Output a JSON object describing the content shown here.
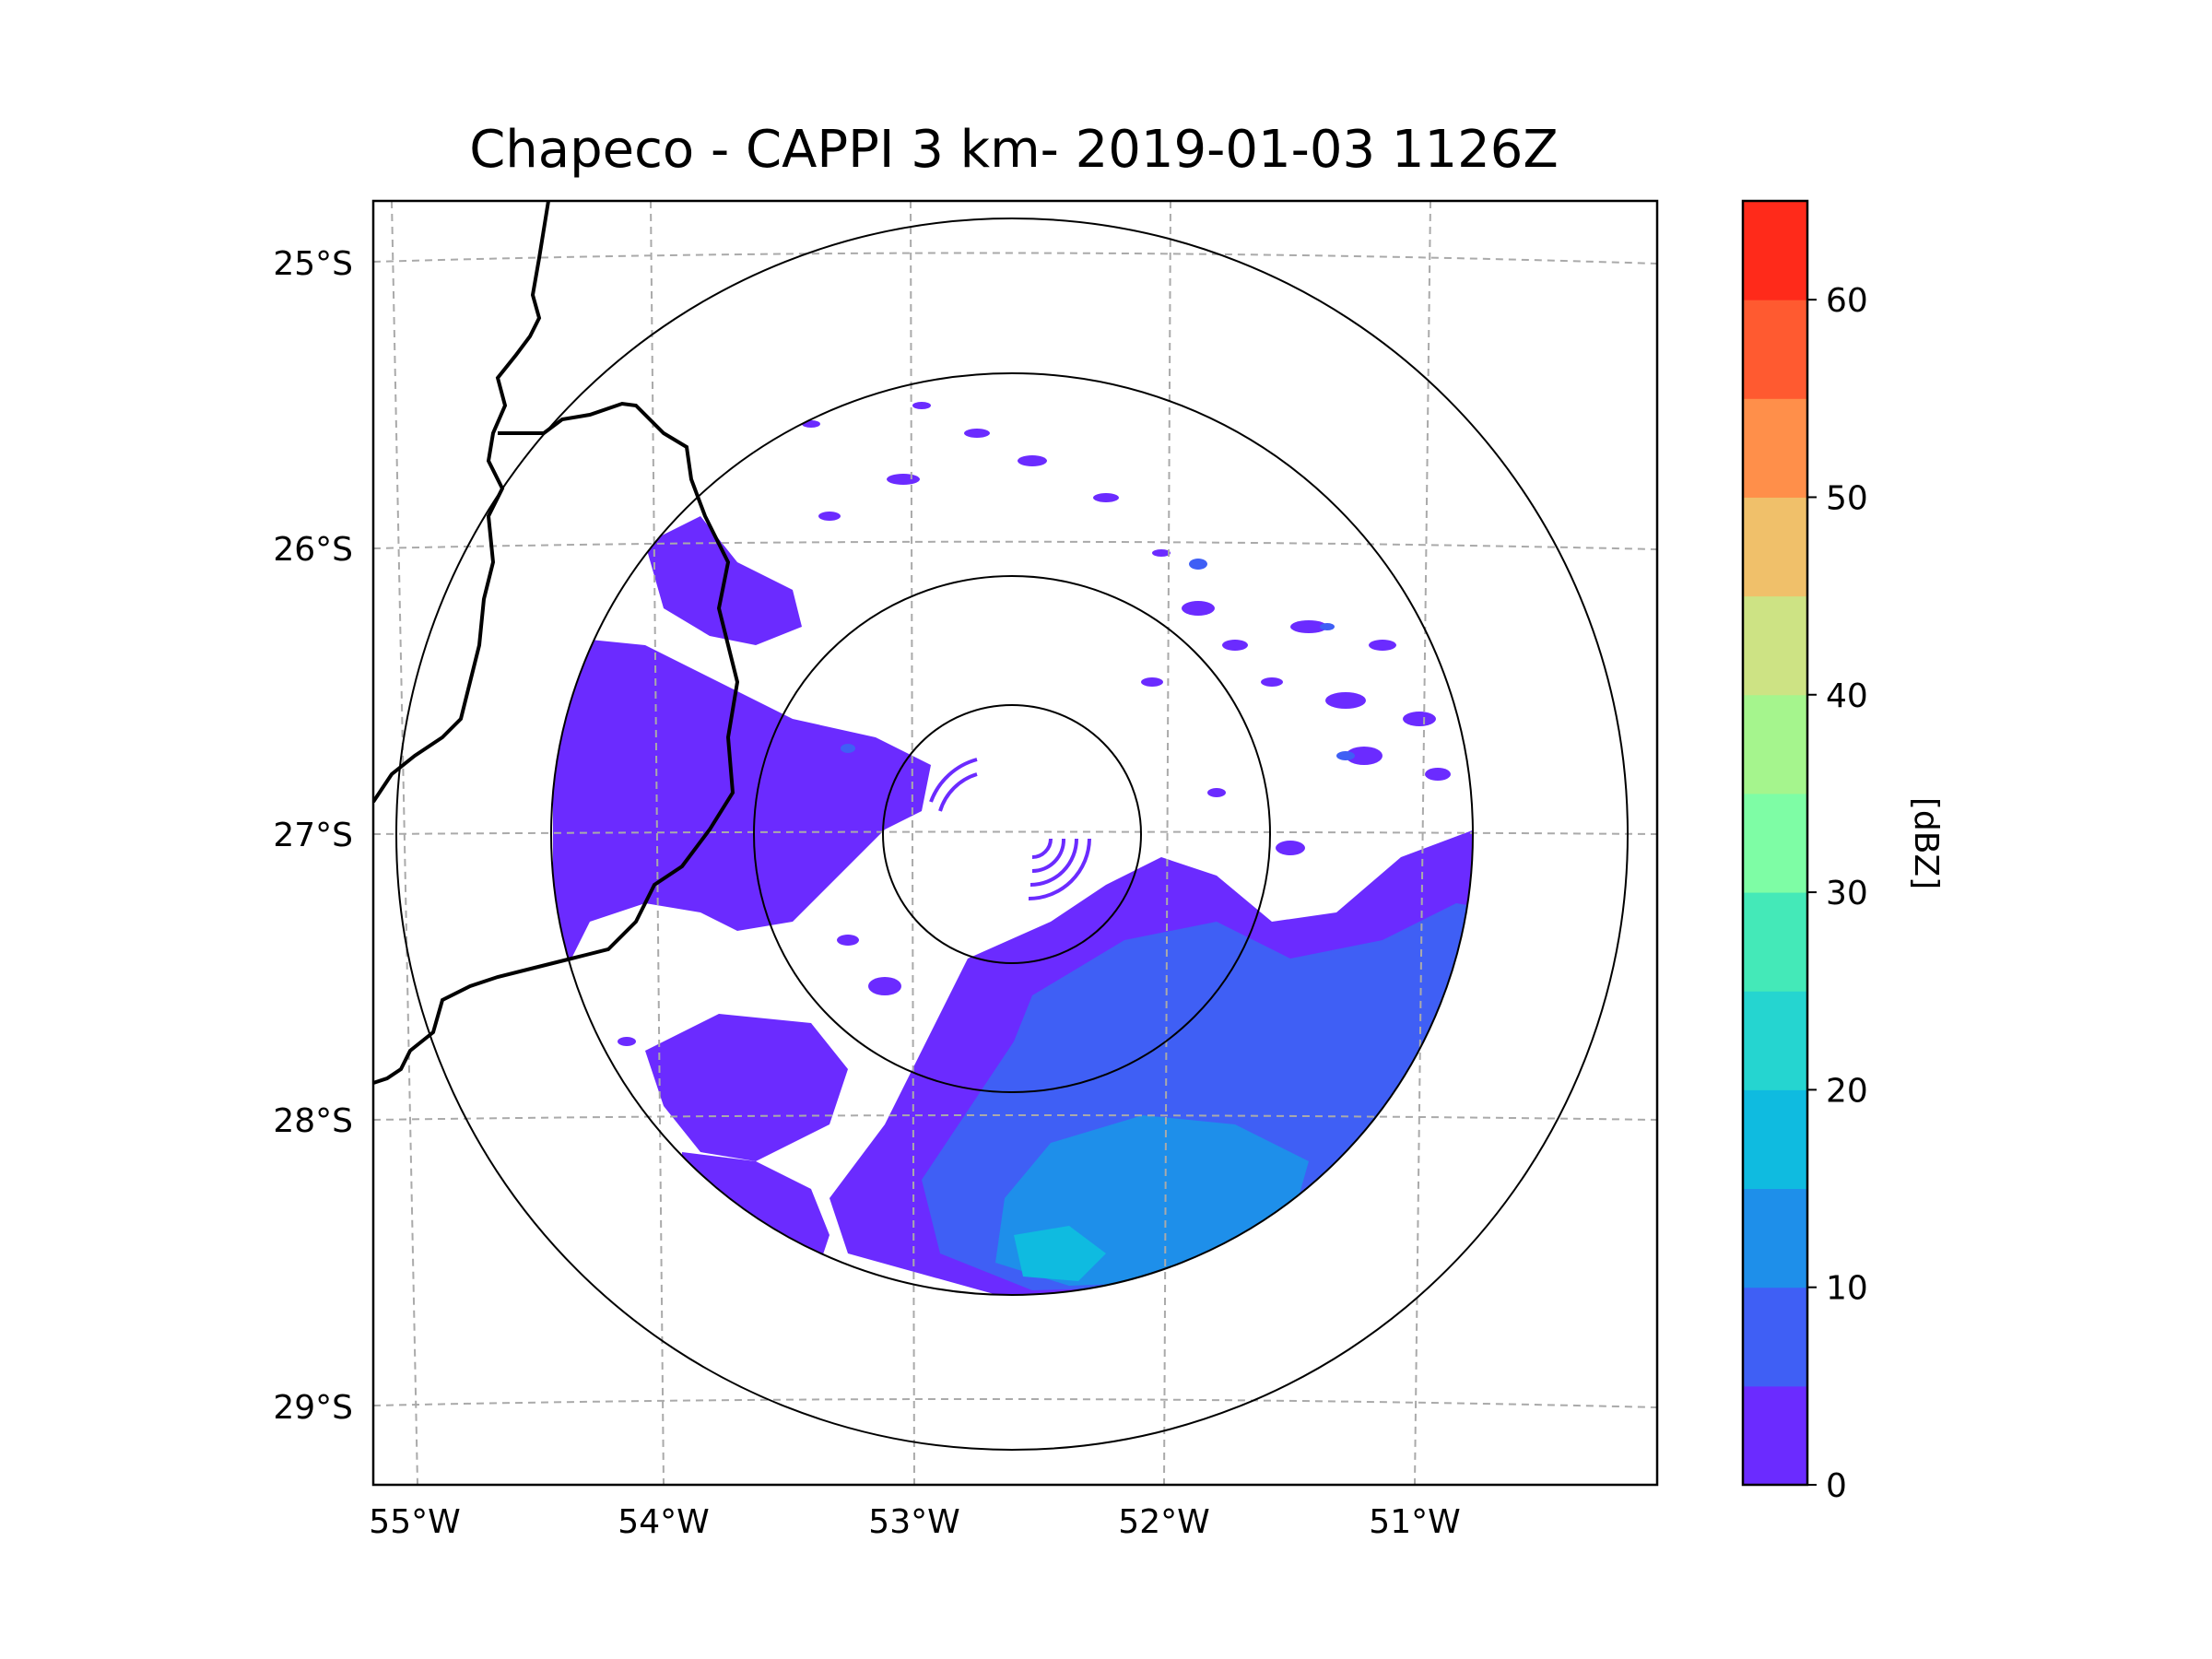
{
  "title": "Chapeco - CAPPI 3 km- 2019-01-03 1126Z",
  "lat_labels": [
    "25°S",
    "26°S",
    "27°S",
    "28°S",
    "29°S"
  ],
  "lon_labels": [
    "55°W",
    "54°W",
    "53°W",
    "52°W",
    "51°W"
  ],
  "colorbar": {
    "label": "[dBZ]",
    "tick_labels": [
      "0",
      "10",
      "20",
      "30",
      "40",
      "50",
      "60"
    ],
    "levels": [
      0,
      5,
      10,
      15,
      20,
      25,
      30,
      35,
      40,
      45,
      50,
      55,
      60,
      65
    ],
    "colors": [
      "#6b2bff",
      "#3f5ff5",
      "#1e8fea",
      "#0fbbe0",
      "#25d5d0",
      "#44e9b8",
      "#7efda5",
      "#a5f58d",
      "#cde384",
      "#f0c06a",
      "#ff8f4a",
      "#ff5a30",
      "#ff2a1a"
    ]
  },
  "chart_data": {
    "type": "heatmap",
    "title": "Chapeco - CAPPI 3 km- 2019-01-03 1126Z",
    "variable": "reflectivity",
    "units": "dBZ",
    "lon_range": [
      -55.2,
      -50.05
    ],
    "lat_range": [
      -29.3,
      -24.8
    ],
    "radar_location": {
      "lon": -52.6,
      "lat": -27.0
    },
    "range_ring_labels": [],
    "colorbar_range": [
      0,
      65
    ]
  }
}
